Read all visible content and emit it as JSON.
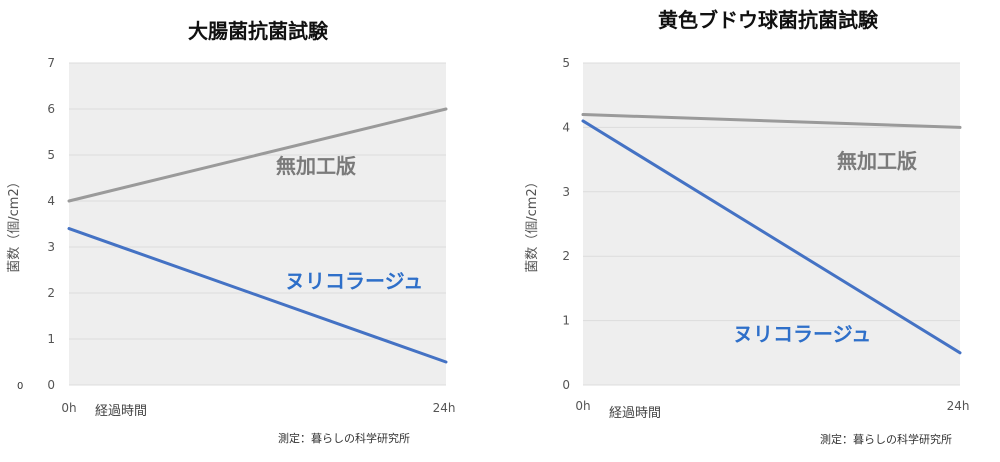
{
  "stray_label": "0",
  "chart_data": [
    {
      "type": "line",
      "title": "大腸菌抗菌試験",
      "ylabel": "菌数（個/cm2）",
      "xlabel": "経過時間",
      "x": [
        "0h",
        "24h"
      ],
      "ylim": [
        0,
        7
      ],
      "yticks": [
        "0",
        "1",
        "2",
        "3",
        "4",
        "5",
        "6",
        "7"
      ],
      "grid": true,
      "series": [
        {
          "name": "無加工版",
          "values": [
            4.0,
            6.0
          ],
          "color": "#9a9a9a"
        },
        {
          "name": "ヌリコラージュ",
          "values": [
            3.4,
            0.5
          ],
          "color": "#4472c4"
        }
      ],
      "credit": "測定：暮らしの科学研究所"
    },
    {
      "type": "line",
      "title": "黄色ブドウ球菌抗菌試験",
      "ylabel": "菌数（個/cm2）",
      "xlabel": "経過時間",
      "x": [
        "0h",
        "24h"
      ],
      "ylim": [
        0,
        5
      ],
      "yticks": [
        "0",
        "1",
        "2",
        "3",
        "4",
        "5"
      ],
      "grid": true,
      "series": [
        {
          "name": "無加工版",
          "values": [
            4.2,
            4.0
          ],
          "color": "#9a9a9a"
        },
        {
          "name": "ヌリコラージュ",
          "values": [
            4.1,
            0.5
          ],
          "color": "#4472c4"
        }
      ],
      "credit": "測定：暮らしの科学研究所"
    }
  ]
}
